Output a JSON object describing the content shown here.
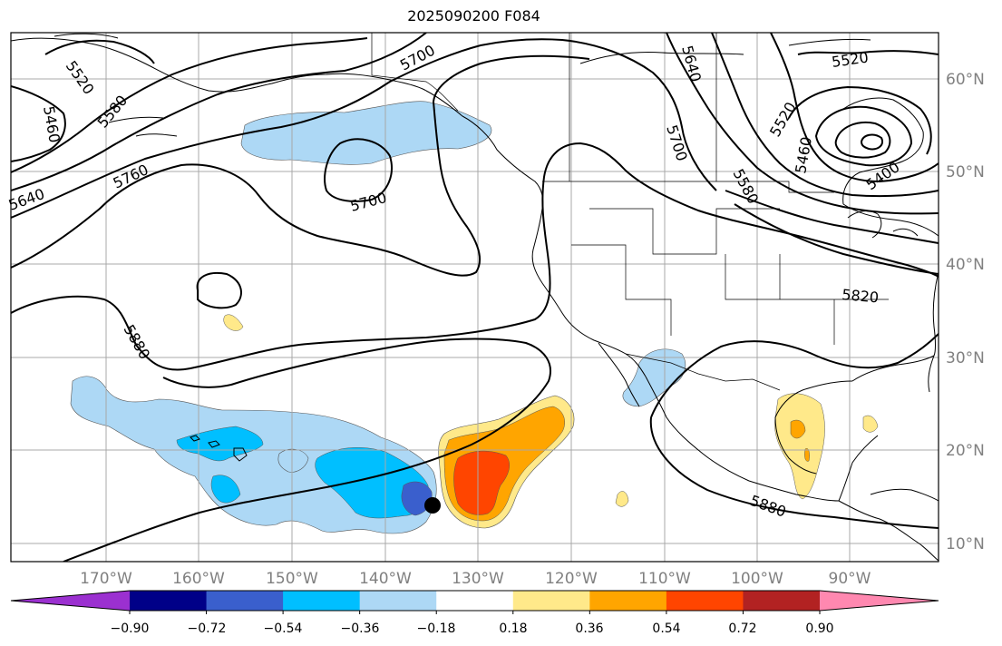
{
  "title": "2025090200 F084",
  "lon_labels": [
    "170°W",
    "160°W",
    "150°W",
    "140°W",
    "130°W",
    "120°W",
    "110°W",
    "100°W",
    "90°W"
  ],
  "lat_labels": [
    "60°N",
    "50°N",
    "40°N",
    "30°N",
    "20°N",
    "10°N"
  ],
  "contour_labels": [
    "5520",
    "5460",
    "5580",
    "5640",
    "5760",
    "5700",
    "5700",
    "5640",
    "5700",
    "5520",
    "5520",
    "5460",
    "5400",
    "5580",
    "5820",
    "5880",
    "5880"
  ],
  "colorbar": {
    "ticks": [
      "−0.90",
      "−0.72",
      "−0.54",
      "−0.36",
      "−0.18",
      "0.18",
      "0.36",
      "0.54",
      "0.72",
      "0.90"
    ],
    "colors": [
      "#9b30d0",
      "#000088",
      "#3a5fcd",
      "#00bfff",
      "#add8f5",
      "#ffffff",
      "#ffe98a",
      "#ffa500",
      "#ff4500",
      "#b22222",
      "#ff88b0"
    ]
  },
  "fill_colors": {
    "light_blue": "#add8f5",
    "blue": "#00bfff",
    "dark_blue": "#3a5fcd",
    "yellow": "#ffe98a",
    "orange": "#ffa500",
    "red_orange": "#ff4500"
  }
}
